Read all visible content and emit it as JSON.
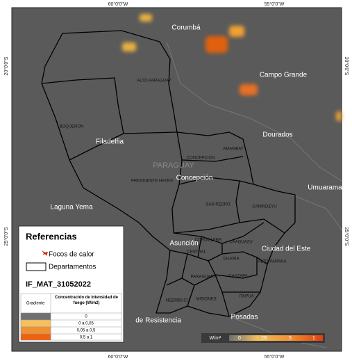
{
  "map": {
    "coordinates": {
      "top": [
        "60°0'0\"W",
        "55°0'0\"W"
      ],
      "bottom": [
        "60°0'0\"W",
        "55°0'0\"W"
      ],
      "left": [
        "20°0'0\"S",
        "25°0'0\"S"
      ],
      "right": [
        "20°0'0\"S",
        "25°0'0\"S"
      ]
    },
    "country": "PARAGUAY",
    "cities": [
      "Corumbá",
      "Campo Grande",
      "Dourados",
      "Umuarama",
      "Filadelfia",
      "Laguna Yema",
      "Concepción",
      "Asunción",
      "Ciudad del Este",
      "de Resistencia",
      "Posadas"
    ],
    "departments": [
      "ALTO PARAGUAY",
      "BOQUERON",
      "PRESIDENTE HAYES",
      "CONCEPCION",
      "AMAMBAY",
      "SAN PEDRO",
      "CANINDEYU",
      "CORDILLERA",
      "CAAGUAZU",
      "CENTRAL",
      "GUAIRA",
      "ALTO PARANA",
      "PARAGUARI",
      "CAAZAPA",
      "MISIONES",
      "NEEMBUCU",
      "ITAPUA"
    ]
  },
  "legend": {
    "title": "Referencias",
    "items": [
      "Focos de calor",
      "Departamentos"
    ],
    "layer": "IF_MAT_31052022",
    "table": {
      "header": [
        "Gradiente",
        "Concentración de intensidad de fuego (W/m2)"
      ],
      "rows": [
        "0",
        "0 a 0,05",
        "0,05 a 0,5",
        "0,5 a 1"
      ]
    }
  },
  "color_bar": {
    "unit": "W/m²",
    "labels": [
      "0",
      ".05",
      ".5",
      "1"
    ]
  }
}
